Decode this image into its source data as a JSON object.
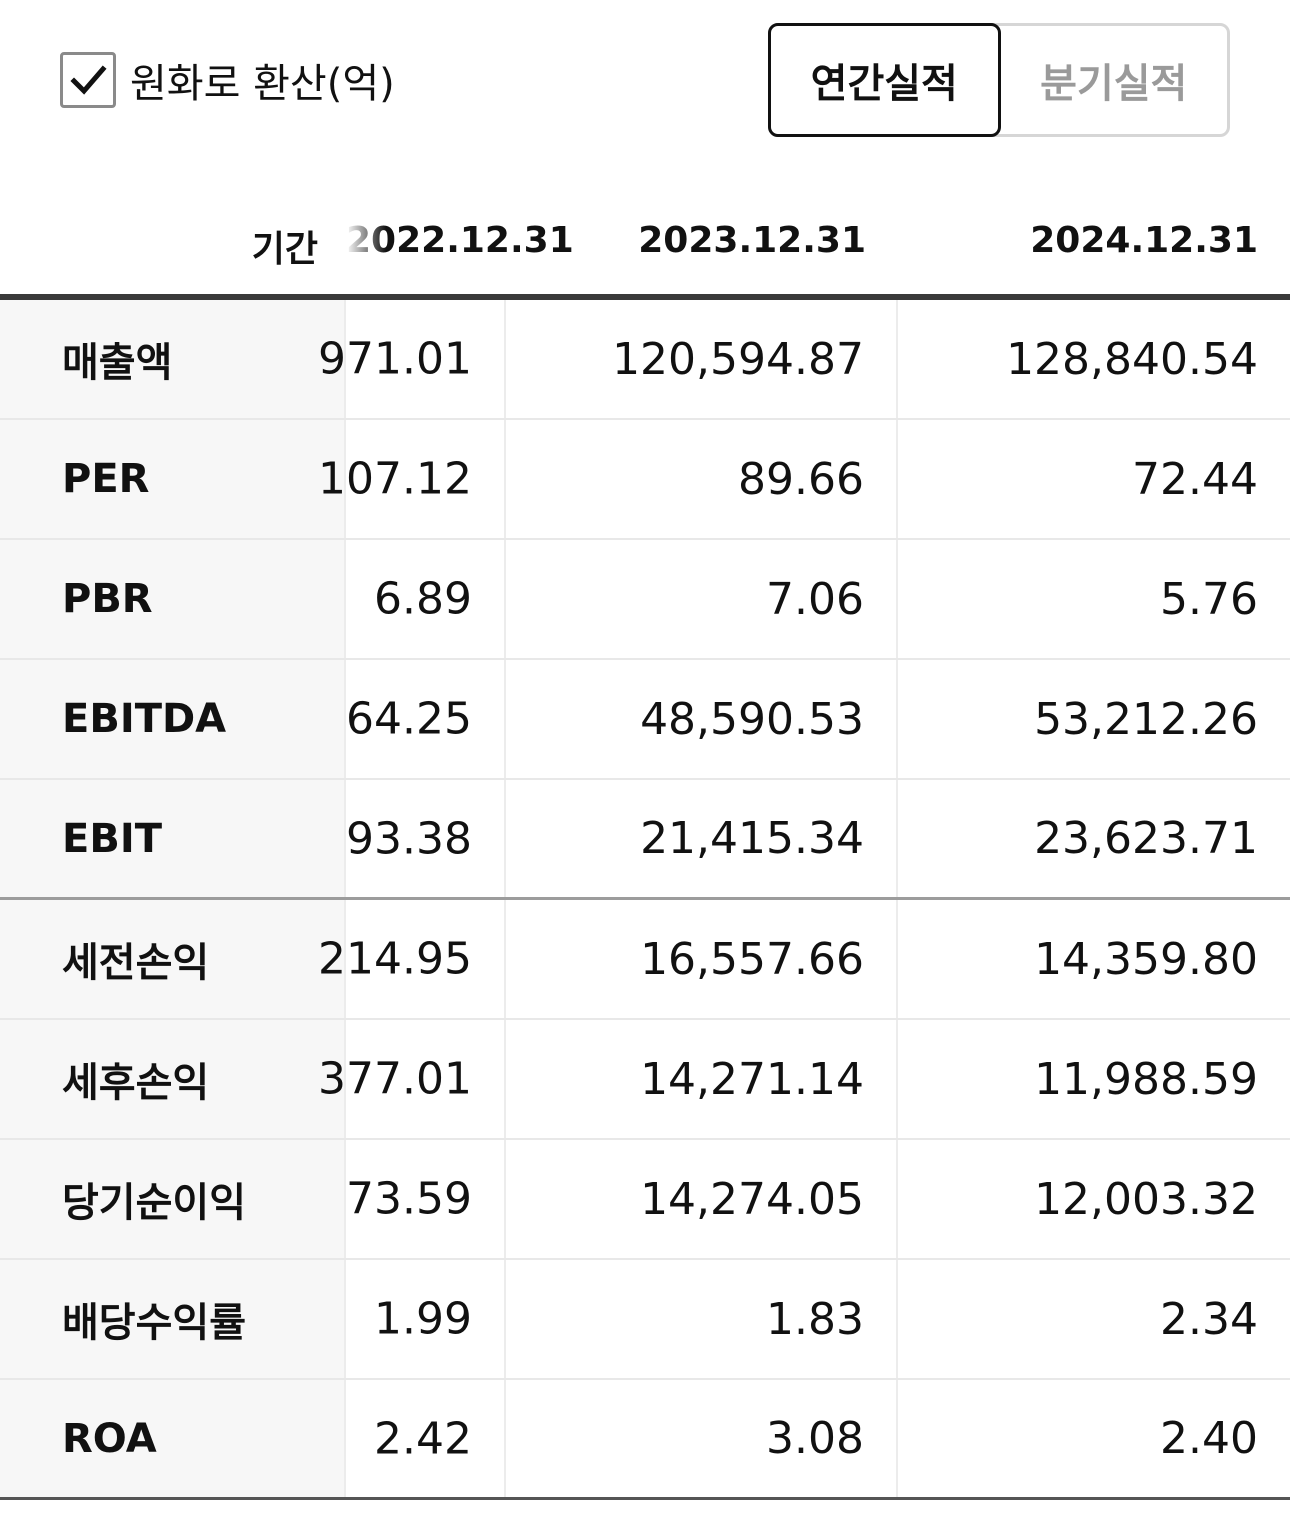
{
  "controls": {
    "convert_checkbox": {
      "checked": true,
      "label": "원화로 환산(억)"
    },
    "tabs": [
      {
        "label": "연간실적",
        "active": true
      },
      {
        "label": "분기실적",
        "active": false
      }
    ]
  },
  "table": {
    "header": {
      "period_label": "기간",
      "columns": [
        "2022.12.31",
        "2023.12.31",
        "2024.12.31"
      ]
    },
    "rows": [
      {
        "label": "매출액",
        "values": [
          "971.01",
          "120,594.87",
          "128,840.54"
        ]
      },
      {
        "label": "PER",
        "values": [
          "107.12",
          "89.66",
          "72.44"
        ]
      },
      {
        "label": "PBR",
        "values": [
          "6.89",
          "7.06",
          "5.76"
        ]
      },
      {
        "label": "EBITDA",
        "values": [
          "64.25",
          "48,590.53",
          "53,212.26"
        ]
      },
      {
        "label": "EBIT",
        "values": [
          "93.38",
          "21,415.34",
          "23,623.71"
        ]
      },
      {
        "label": "세전손익",
        "values": [
          "214.95",
          "16,557.66",
          "14,359.80"
        ]
      },
      {
        "label": "세후손익",
        "values": [
          "377.01",
          "14,271.14",
          "11,988.59"
        ]
      },
      {
        "label": "당기순이익",
        "values": [
          "73.59",
          "14,274.05",
          "12,003.32"
        ]
      },
      {
        "label": "배당수익률",
        "values": [
          "1.99",
          "1.83",
          "2.34"
        ]
      },
      {
        "label": "ROA",
        "values": [
          "2.42",
          "3.08",
          "2.40"
        ]
      }
    ]
  },
  "colors": {
    "text": "#111111",
    "inactive_tab": "#9a9a9a",
    "label_background": "#f7f7f7",
    "header_rule": "#3a3a3a"
  }
}
